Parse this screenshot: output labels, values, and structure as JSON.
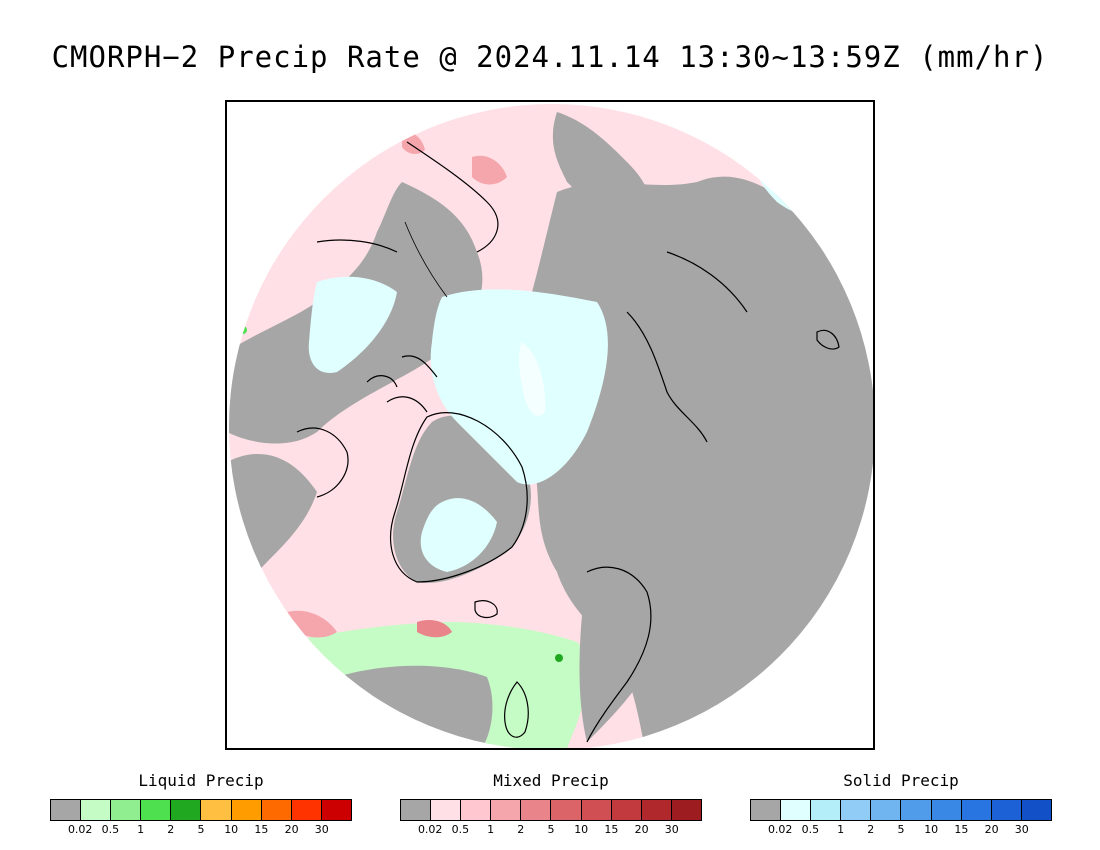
{
  "title": "CMORPH−2 Precip Rate @ 2024.11.14 13:30~13:59Z (mm/hr)",
  "colors": {
    "no_precip": "#a6a6a6",
    "liquid": [
      "#a6a6a6",
      "#c5fbc5",
      "#90ee90",
      "#4fe04f",
      "#20a820",
      "#ffbf40",
      "#ff9c00",
      "#ff6a00",
      "#ff3300",
      "#cc0000"
    ],
    "mixed": [
      "#a6a6a6",
      "#ffe0e6",
      "#ffc8d0",
      "#f5a6ad",
      "#e8848a",
      "#db6468",
      "#cf4f53",
      "#c23a3e",
      "#b0282c",
      "#9c1c20"
    ],
    "solid": [
      "#a6a6a6",
      "#e0ffff",
      "#b4eef8",
      "#90ccf5",
      "#70b4f0",
      "#509cea",
      "#3a88e6",
      "#2874e0",
      "#1c62d6",
      "#1250c8"
    ]
  },
  "legends": [
    {
      "title": "Liquid Precip",
      "ticks": [
        "0.02",
        "0.5",
        "1",
        "2",
        "5",
        "10",
        "15",
        "20",
        "30"
      ]
    },
    {
      "title": "Mixed Precip",
      "ticks": [
        "0.02",
        "0.5",
        "1",
        "2",
        "5",
        "10",
        "15",
        "20",
        "30"
      ]
    },
    {
      "title": "Solid Precip",
      "ticks": [
        "0.02",
        "0.5",
        "1",
        "2",
        "5",
        "10",
        "15",
        "20",
        "30"
      ]
    }
  ]
}
